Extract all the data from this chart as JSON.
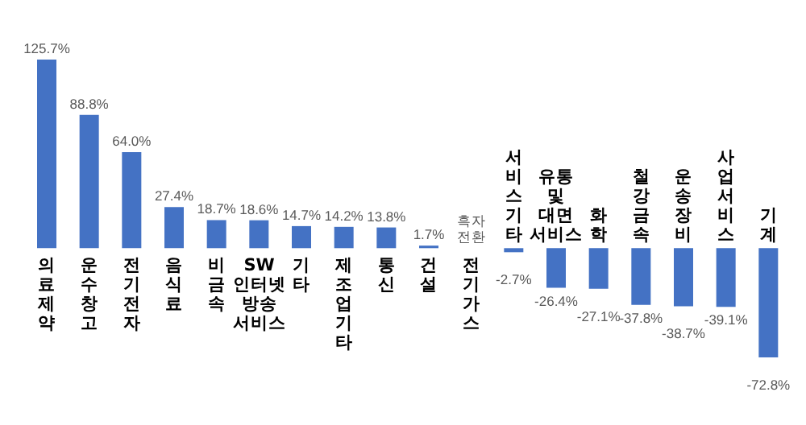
{
  "chart_data": {
    "type": "bar",
    "categories": [
      "의료제약",
      "운수창고",
      "전기전자",
      "음식료",
      "비금속",
      "SW 인터넷 방송서비스",
      "기타",
      "제조업기타",
      "통신",
      "건설",
      "전기가스",
      "서비스기타",
      "유통 및 대면서비스",
      "화학",
      "철강금속",
      "운송장비",
      "사업서비스",
      "기계"
    ],
    "series": [
      {
        "color": "#4472c4",
        "values": [
          125.7,
          88.8,
          64.0,
          27.4,
          18.7,
          18.6,
          14.7,
          14.2,
          13.8,
          1.7,
          null,
          -2.7,
          -26.4,
          -27.1,
          -37.8,
          -38.7,
          -39.1,
          -72.8
        ],
        "value_labels": [
          "125.7%",
          "88.8%",
          "64.0%",
          "27.4%",
          "18.7%",
          "18.6%",
          "14.7%",
          "14.2%",
          "13.8%",
          "1.7%",
          "흑자전환",
          "-2.7%",
          "-26.4%",
          "-27.1%",
          "-37.8%",
          "-38.7%",
          "-39.1%",
          "-72.8%"
        ]
      }
    ],
    "tick_labels": "x"
  }
}
